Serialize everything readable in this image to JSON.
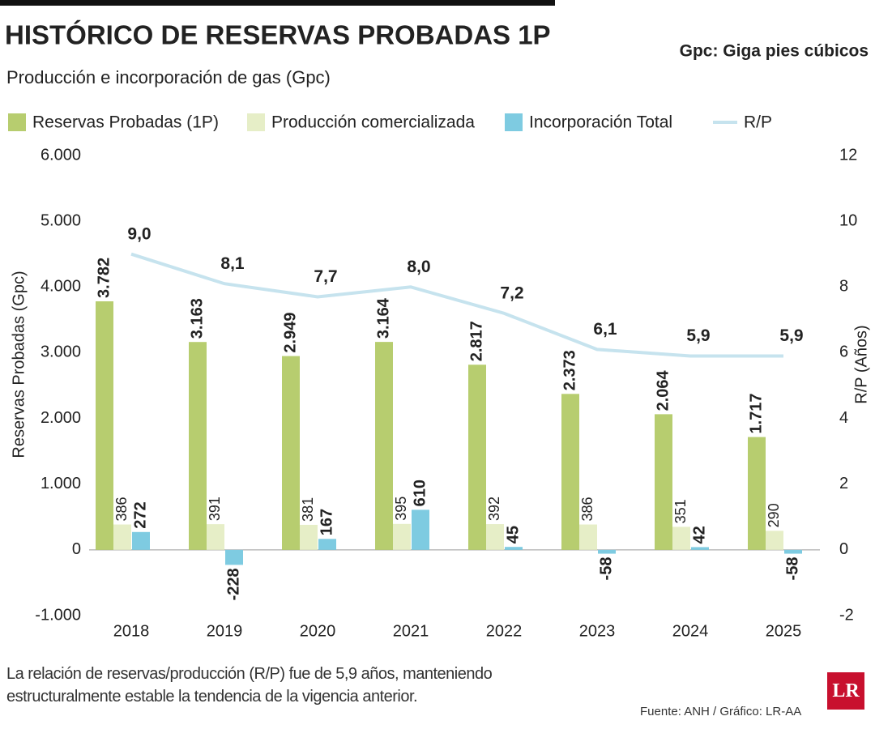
{
  "header": {
    "title": "HISTÓRICO DE RESERVAS PROBADAS 1P",
    "unit_note": "Gpc: Giga pies cúbicos"
  },
  "chart_data": {
    "type": "bar",
    "subtitle": "Producción e incorporación de gas (Gpc)",
    "y_label": "Reservas Probadas (Gpc)",
    "y2_label": "R/P (Años)",
    "categories": [
      "2018",
      "2019",
      "2020",
      "2021",
      "2022",
      "2023",
      "2024",
      "2025"
    ],
    "series": [
      {
        "name": "Reservas Probadas (1P)",
        "color": "#b7cd6f",
        "values": [
          3782,
          3163,
          2949,
          3164,
          2817,
          2373,
          2064,
          1717
        ],
        "value_labels": [
          "3.782",
          "3.163",
          "2.949",
          "3.164",
          "2.817",
          "2.373",
          "2.064",
          "1.717"
        ]
      },
      {
        "name": "Producción comercializada",
        "color": "#e6eec7",
        "values": [
          386,
          391,
          381,
          395,
          392,
          386,
          351,
          290
        ]
      },
      {
        "name": "Incorporación Total",
        "color": "#7ecbe1",
        "values": [
          272,
          -228,
          167,
          610,
          45,
          -58,
          42,
          -58
        ]
      },
      {
        "name": "R/P",
        "type": "line",
        "axis": "y2",
        "color": "#c6e3ee",
        "values": [
          9.0,
          8.1,
          7.7,
          8.0,
          7.2,
          6.1,
          5.9,
          5.9
        ],
        "value_labels": [
          "9,0",
          "8,1",
          "7,7",
          "8,0",
          "7,2",
          "6,1",
          "5,9",
          "5,9"
        ]
      }
    ],
    "ylim": [
      -1000,
      6000
    ],
    "yticks": [
      {
        "value": -1000,
        "label": "-1.000"
      },
      0,
      {
        "value": 1000,
        "label": "1.000"
      },
      {
        "value": 2000,
        "label": "2.000"
      },
      {
        "value": 3000,
        "label": "3.000"
      },
      {
        "value": 4000,
        "label": "4.000"
      },
      {
        "value": 5000,
        "label": "5.000"
      },
      {
        "value": 6000,
        "label": "6.000"
      }
    ],
    "y2lim": [
      -2,
      12
    ],
    "y2ticks": [
      -2,
      0,
      2,
      4,
      6,
      8,
      10,
      12
    ]
  },
  "note": "La relación de reservas/producción (R/P) fue de 5,9 años, manteniendo estructuralmente estable la tendencia de la vigencia anterior.",
  "source": "Fuente: ANH / Gráfico: LR-AA",
  "logo": "LR"
}
